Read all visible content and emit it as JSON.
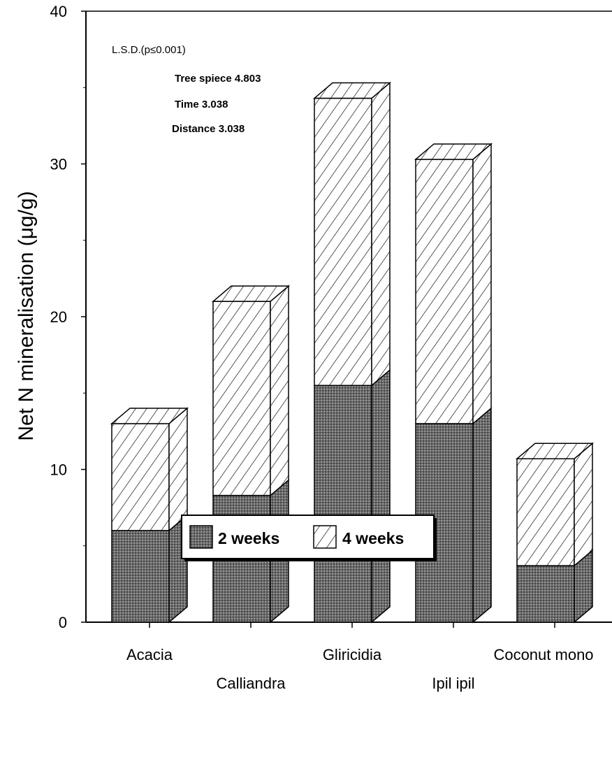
{
  "chart_data": {
    "type": "bar",
    "stacked": true,
    "three_d": true,
    "ylabel": "Net N mineralisation (μg/g)",
    "xlabel": "",
    "ylim": [
      0,
      40
    ],
    "yticks": [
      0,
      10,
      20,
      30,
      40
    ],
    "y_tick_labels": [
      "0",
      "10",
      "20",
      "30",
      "40"
    ],
    "categories": [
      "Acacia",
      "Calliandra",
      "Gliricidia",
      "Ipil ipil",
      "Coconut mono"
    ],
    "series": [
      {
        "name": "2 weeks",
        "values": [
          6.0,
          8.3,
          15.5,
          13.0,
          3.7
        ],
        "pattern": "dark-stipple",
        "color": "#5a5a5a"
      },
      {
        "name": "4 weeks",
        "values": [
          7.0,
          12.7,
          18.8,
          17.3,
          7.0
        ],
        "pattern": "diagonal-hatch",
        "color": "#ffffff"
      }
    ],
    "totals": [
      13.0,
      21.0,
      34.3,
      30.3,
      10.7
    ],
    "annotations": {
      "title": "L.S.D.(p≤0.001)",
      "lines": [
        "Tree spiece 4.803",
        "Time 3.038",
        "Distance 3.038"
      ]
    },
    "legend_position": "bottom-center",
    "grid": false
  }
}
